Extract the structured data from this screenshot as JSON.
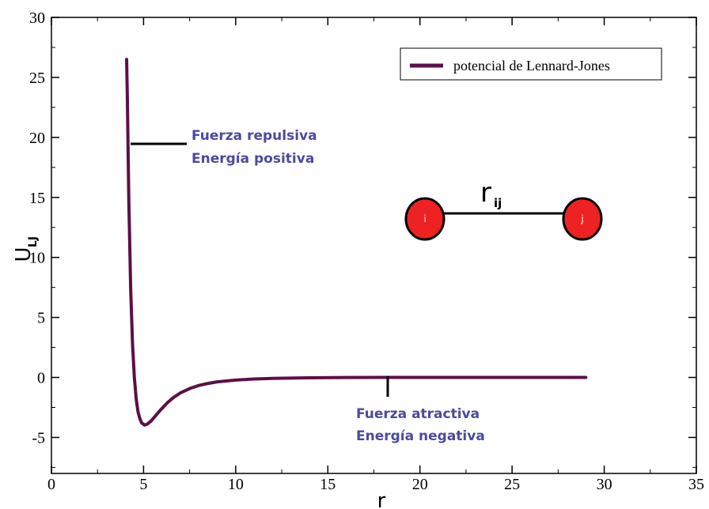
{
  "chart_data": {
    "type": "line",
    "xlabel": "r",
    "ylabel_main": "U",
    "ylabel_sub": "LJ",
    "xlim": [
      0,
      35
    ],
    "ylim": [
      -8,
      30
    ],
    "x_ticks": [
      0,
      5,
      10,
      15,
      20,
      25,
      30,
      35
    ],
    "y_ticks": [
      -5,
      0,
      5,
      10,
      15,
      20,
      25,
      30
    ],
    "grid": false,
    "legend_position": "top-right",
    "series": [
      {
        "name": "potencial de Lennard-Jones",
        "color": "#5c0f45",
        "epsilon": 4.0,
        "sigma": 4.5,
        "x": [
          4.08,
          4.12,
          4.2,
          4.3,
          4.4,
          4.5,
          4.6,
          4.7,
          4.8,
          4.9,
          5.05,
          5.2,
          5.4,
          5.6,
          5.8,
          6.0,
          6.3,
          6.6,
          7.0,
          7.5,
          8.0,
          8.5,
          9.0,
          10.0,
          11.0,
          12.0,
          14.0,
          16.0,
          18.0,
          20.0,
          23.0,
          26.0,
          29.0
        ],
        "y": [
          26.5,
          23.3,
          14.7,
          7.4,
          2.8,
          0.0,
          -1.79,
          -2.87,
          -3.45,
          -3.79,
          -3.97,
          -3.89,
          -3.64,
          -3.29,
          -2.92,
          -2.58,
          -2.1,
          -1.7,
          -1.29,
          -0.93,
          -0.67,
          -0.5,
          -0.37,
          -0.22,
          -0.13,
          -0.08,
          -0.03,
          -0.01,
          0.0,
          0.0,
          0.0,
          0.0,
          0.0
        ]
      }
    ],
    "annotations": {
      "repulsive": [
        "Fuerza repulsiva",
        "Energía positiva"
      ],
      "attractive": [
        "Fuerza atractiva",
        "Energía negativa"
      ],
      "bond_label": "r",
      "bond_sub": "ij",
      "atom_i": "i",
      "atom_j": "j"
    },
    "colors": {
      "atom_fill": "#ee2222",
      "annotation_text": "#4a4aa0",
      "line": "#5c0f45"
    }
  }
}
